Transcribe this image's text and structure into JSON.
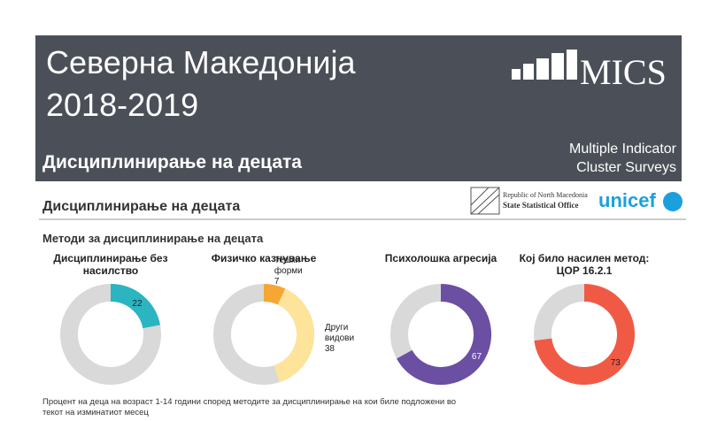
{
  "header": {
    "title_line1": "Северна Македонија",
    "title_line2": "2018-2019",
    "topic": "Дисциплинирање на децата",
    "logo": "MICS",
    "tagline_line1": "Multiple Indicator",
    "tagline_line2": "Cluster Surveys"
  },
  "section": {
    "title": "Дисциплинирање на децата",
    "partner_line1": "Republic of North Macedonia",
    "partner_line2": "State Statistical Office",
    "unicef": "unicef",
    "subtitle": "Методи за дисциплинирање на децата"
  },
  "chart_data": [
    {
      "type": "donut",
      "title": "Дисциплинирање без насилство",
      "values": [
        22
      ],
      "colors": [
        "#2bb5c0"
      ]
    },
    {
      "type": "donut",
      "title": "Физичко казнување",
      "categories": [
        "Тешки форми",
        "Други видови"
      ],
      "values": [
        7,
        38
      ],
      "colors": [
        "#f6a632",
        "#fde49a"
      ]
    },
    {
      "type": "donut",
      "title": "Психолошка агресија",
      "values": [
        67
      ],
      "colors": [
        "#6a4fa3"
      ]
    },
    {
      "type": "donut",
      "title": "Кој било насилен метод: ЦОР 16.2.1",
      "values": [
        73
      ],
      "colors": [
        "#f05a45"
      ]
    }
  ],
  "footnote": "Процент на деца на возраст 1-14 години според методите за дисциплинирање на кои биле подложени во текот на изминатиот месец"
}
